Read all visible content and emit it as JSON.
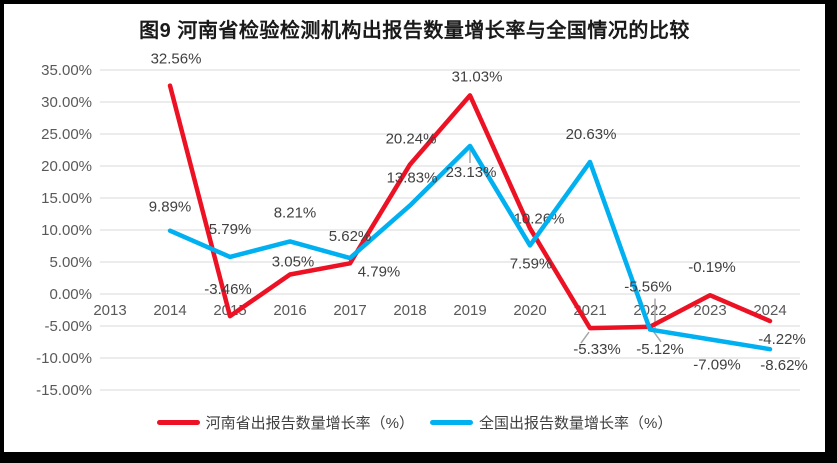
{
  "title": "图9  河南省检验检测机构出报告数量增长率与全国情况的比较",
  "colors": {
    "henan": "#ed1124",
    "national": "#00b0f0",
    "grid": "#d9d9d9",
    "axis_text": "#595959",
    "data_label": "#404040",
    "leader": "#a6a6a6"
  },
  "chart_data": {
    "type": "line",
    "title": "图9  河南省检验检测机构出报告数量增长率与全国情况的比较",
    "categories": [
      "2013",
      "2014",
      "2015",
      "2016",
      "2017",
      "2018",
      "2019",
      "2020",
      "2021",
      "2022",
      "2023",
      "2024"
    ],
    "series": [
      {
        "name": "河南省出报告数量增长率（%）",
        "color_key": "henan",
        "values": [
          null,
          32.56,
          -3.46,
          3.05,
          4.79,
          20.24,
          31.03,
          10.26,
          -5.33,
          -5.12,
          -0.19,
          -4.22
        ],
        "labels": [
          null,
          "32.56%",
          "-3.46%",
          "3.05%",
          "4.79%",
          "20.24%",
          "31.03%",
          "10.26%",
          "-5.33%",
          "-5.12%",
          "-0.19%",
          "-4.22%"
        ],
        "label_dx": [
          null,
          6,
          -2,
          3,
          29,
          1,
          7,
          9,
          7,
          10,
          2,
          12
        ],
        "label_dy": [
          null,
          -27,
          -27,
          -13,
          8,
          -26,
          -19,
          -10,
          21,
          22,
          -28,
          18
        ]
      },
      {
        "name": "全国出报告数量增长率（%）",
        "color_key": "national",
        "values": [
          null,
          9.89,
          5.79,
          8.21,
          5.62,
          13.83,
          23.13,
          7.59,
          20.63,
          -5.56,
          -7.09,
          -8.62
        ],
        "labels": [
          null,
          "9.89%",
          "5.79%",
          "8.21%",
          "5.62%",
          "13.83%",
          "23.13%",
          "7.59%",
          "20.63%",
          "-5.56%",
          "-7.09%",
          "-8.62%"
        ],
        "label_dx": [
          null,
          0,
          0,
          5,
          0,
          2,
          1,
          1,
          1,
          -2,
          7,
          14
        ],
        "label_dy": [
          null,
          -24,
          -28,
          -29,
          -22,
          -28,
          26,
          18,
          -28,
          -43,
          25,
          16
        ]
      }
    ],
    "ylim": [
      -15,
      35
    ],
    "ytick_step": 5,
    "ytick_labels": [
      "35.00%",
      "30.00%",
      "25.00%",
      "20.00%",
      "15.00%",
      "10.00%",
      "5.00%",
      "0.00%",
      "-5.00%",
      "-10.00%",
      "-15.00%"
    ],
    "grid": true,
    "legend_position": "bottom",
    "label_leaders": [
      {
        "series": 0,
        "idx": 8,
        "seg": [
          -1,
          4,
          -9,
          15
        ]
      },
      {
        "series": 0,
        "idx": 9,
        "seg": [
          3,
          4,
          11,
          15
        ]
      },
      {
        "series": 1,
        "idx": 6,
        "seg": [
          0,
          4,
          0,
          17
        ]
      },
      {
        "series": 1,
        "idx": 9,
        "seg": [
          5,
          -31,
          5,
          0
        ]
      }
    ]
  }
}
